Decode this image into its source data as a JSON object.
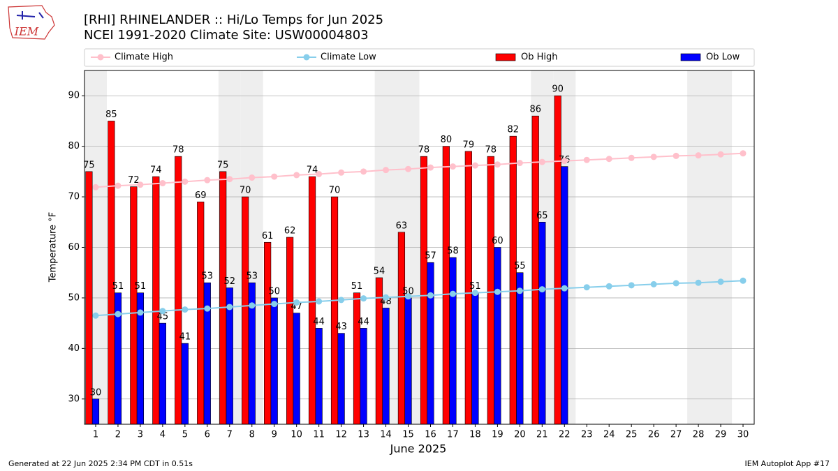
{
  "logo": "IEM",
  "footer_left": "Generated at 22 Jun 2025 2:34 PM CDT in 0.51s",
  "footer_right": "IEM Autoplot App #17",
  "chart_data": {
    "type": "bar_line",
    "title": "[RHI] RHINELANDER :: Hi/Lo Temps for Jun 2025",
    "subtitle": "NCEI 1991-2020 Climate Site: USW00004803",
    "x_label": "June 2025",
    "y_label": "Temperature °F",
    "x": [
      1,
      2,
      3,
      4,
      5,
      6,
      7,
      8,
      9,
      10,
      11,
      12,
      13,
      14,
      15,
      16,
      17,
      18,
      19,
      20,
      21,
      22,
      23,
      24,
      25,
      26,
      27,
      28,
      29,
      30
    ],
    "shaded_x": [
      1,
      7,
      8,
      14,
      15,
      21,
      22,
      28,
      29
    ],
    "series": [
      {
        "name": "Climate High",
        "kind": "line",
        "color": "#ffc0cb",
        "values": [
          71.9,
          72.2,
          72.4,
          72.7,
          73.0,
          73.3,
          73.5,
          73.8,
          74.0,
          74.3,
          74.5,
          74.8,
          75.0,
          75.3,
          75.5,
          75.8,
          76.0,
          76.2,
          76.4,
          76.7,
          76.9,
          77.1,
          77.3,
          77.5,
          77.7,
          77.9,
          78.1,
          78.2,
          78.4,
          78.6
        ]
      },
      {
        "name": "Climate Low",
        "kind": "line",
        "color": "#87ceeb",
        "values": [
          46.5,
          46.8,
          47.1,
          47.4,
          47.7,
          47.9,
          48.2,
          48.5,
          48.8,
          49.1,
          49.3,
          49.6,
          49.9,
          50.1,
          50.3,
          50.5,
          50.8,
          51.0,
          51.2,
          51.4,
          51.7,
          51.9,
          52.1,
          52.3,
          52.5,
          52.7,
          52.9,
          53.0,
          53.2,
          53.4
        ]
      },
      {
        "name": "Ob High",
        "kind": "bar",
        "color": "#ff0000",
        "values": [
          75,
          85,
          72,
          74,
          78,
          69,
          75,
          70,
          61,
          62,
          74,
          70,
          51,
          54,
          63,
          78,
          80,
          79,
          78,
          82,
          86,
          90,
          null,
          null,
          null,
          null,
          null,
          null,
          null,
          null
        ]
      },
      {
        "name": "Ob Low",
        "kind": "bar",
        "color": "#0000ff",
        "values": [
          30,
          51,
          51,
          45,
          41,
          53,
          52,
          53,
          50,
          47,
          44,
          43,
          44,
          48,
          50,
          57,
          58,
          51,
          60,
          55,
          65,
          76,
          null,
          null,
          null,
          null,
          null,
          null,
          null,
          null
        ]
      }
    ],
    "xlim": [
      0.5,
      30.5
    ],
    "xticks": [
      1,
      2,
      3,
      4,
      5,
      6,
      7,
      8,
      9,
      10,
      11,
      12,
      13,
      14,
      15,
      16,
      17,
      18,
      19,
      20,
      21,
      22,
      23,
      24,
      25,
      26,
      27,
      28,
      29,
      30
    ],
    "ylim": [
      25,
      95
    ],
    "yticks": [
      30,
      40,
      50,
      60,
      70,
      80,
      90
    ],
    "grid": true,
    "legend": "top"
  }
}
